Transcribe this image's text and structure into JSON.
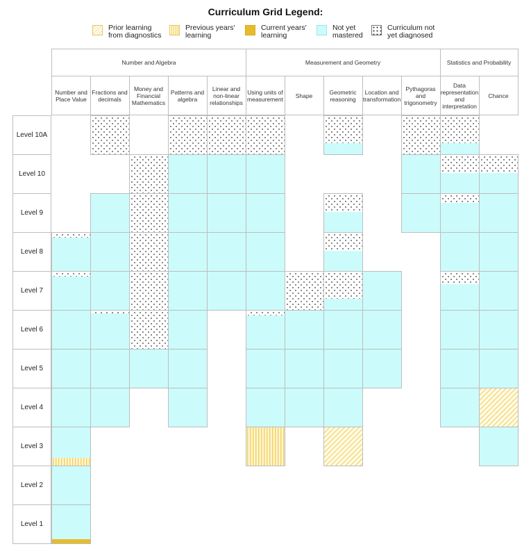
{
  "title": "Curriculum Grid Legend:",
  "legend": [
    {
      "key": "prior",
      "label_line1": "Prior learning",
      "label_line2": "from diagnostics",
      "color": "#f4dc83"
    },
    {
      "key": "prev",
      "label_line1": "Previous years'",
      "label_line2": "learning",
      "color": "#f0d064"
    },
    {
      "key": "curr",
      "label_line1": "Current years'",
      "label_line2": "learning",
      "color": "#e6bc2c"
    },
    {
      "key": "nym",
      "label_line1": "Not yet",
      "label_line2": "mastered",
      "color": "#ccfbfb"
    },
    {
      "key": "nd",
      "label_line1": "Curriculum not",
      "label_line2": "yet diagnosed",
      "color": "#ffffff"
    }
  ],
  "chart_data": {
    "type": "table",
    "strands": [
      {
        "name": "Number and Algebra",
        "span": 5
      },
      {
        "name": "Measurement and Geometry",
        "span": 5
      },
      {
        "name": "Statistics and Probability",
        "span": 2
      }
    ],
    "substrands": [
      "Number and Place Value",
      "Fractions and decimals",
      "Money and Financial Mathematics",
      "Patterns and algebra",
      "Linear and non-linear relationships",
      "Using units of measurement",
      "Shape",
      "Geometric reasoning",
      "Location and transformation",
      "Pythagoras and trigonometry",
      "Data representation and interpretation",
      "Chance"
    ],
    "levels": [
      "Level 10A",
      "Level 10",
      "Level 9",
      "Level 8",
      "Level 7",
      "Level 6",
      "Level 5",
      "Level 4",
      "Level 3",
      "Level 2",
      "Level 1"
    ],
    "cells": [
      [
        null,
        "nd",
        null,
        "nd",
        "nd",
        "nd",
        null,
        "nd/nym",
        null,
        "nd",
        "nd/nym",
        null
      ],
      [
        null,
        null,
        "nd",
        "nym",
        "nym",
        "nym",
        null,
        null,
        null,
        "nym",
        "nd/nym",
        "nd/nym"
      ],
      [
        null,
        "nym",
        "nd",
        "nym",
        "nym",
        "nym",
        null,
        "nd/nym",
        null,
        "nym",
        "nd/nym",
        "nym"
      ],
      [
        "nd/nym",
        "nym",
        "nd",
        "nym",
        "nym",
        "nym",
        null,
        "nd/nym",
        null,
        null,
        "nym",
        "nym"
      ],
      [
        "nd/nym",
        "nym",
        "nd",
        "nym",
        "nym",
        "nym",
        "nd",
        "nd/nym",
        "nym",
        null,
        "nd/nym",
        "nym"
      ],
      [
        "nym",
        "nd/nym",
        "nd",
        "nym",
        null,
        "nd/nym",
        "nym",
        "nym",
        "nym",
        null,
        "nym",
        "nym"
      ],
      [
        "nym",
        "nym",
        "nym",
        "nym",
        null,
        "nym",
        "nym",
        "nym",
        "nym",
        null,
        "nym",
        "nym"
      ],
      [
        "nym",
        "nym",
        null,
        "nym",
        null,
        "nym",
        "nym",
        "nym",
        null,
        null,
        "nym",
        "prior"
      ],
      [
        "nym/prev",
        null,
        null,
        null,
        null,
        "prev",
        null,
        "prior",
        null,
        null,
        null,
        "nym"
      ],
      [
        "nym",
        null,
        null,
        null,
        null,
        null,
        null,
        null,
        null,
        null,
        null,
        null
      ],
      [
        "nym/curr",
        null,
        null,
        null,
        null,
        null,
        null,
        null,
        null,
        null,
        null,
        null
      ]
    ]
  }
}
